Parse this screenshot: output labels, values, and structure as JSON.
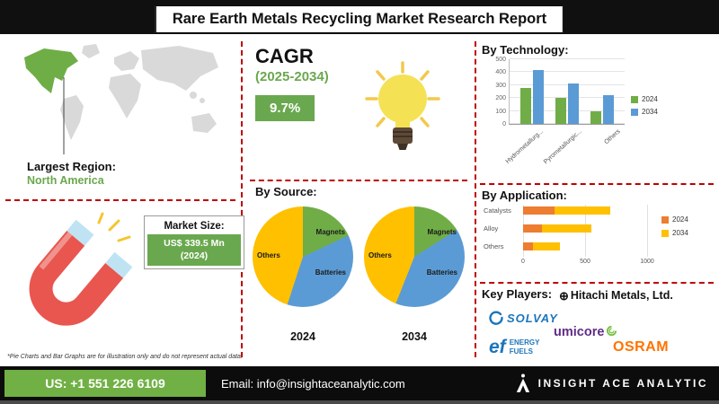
{
  "header": {
    "title": "Rare Earth Metals Recycling Market Research Report"
  },
  "region": {
    "label": "Largest Region:",
    "value": "North America"
  },
  "market_size": {
    "label": "Market Size:",
    "value": "US$ 339.5 Mn",
    "year": "(2024)"
  },
  "cagr": {
    "label": "CAGR",
    "period": "(2025-2034)",
    "value": "9.7%"
  },
  "key_players": {
    "label": "Key Players:",
    "hitachi": "Hitachi Metals, Ltd.",
    "solvay": "SOLVAY",
    "umicore": "umicore",
    "energy_fuels_mark": "ef",
    "energy_fuels_name1": "ENERGY",
    "energy_fuels_name2": "FUELS",
    "osram": "OSRAM"
  },
  "footnote": "*Pie Charts and Bar Graphs are for illustration only and do not represent actual data.",
  "footer": {
    "phone": "US: +1 551 226 6109",
    "email": "Email: info@insightaceanalytic.com",
    "brand": "INSIGHT ACE ANALYTIC"
  },
  "colors": {
    "accent_green": "#6aa84f",
    "dashed_red": "#c00000",
    "bar_green": "#70AD47",
    "bar_blue": "#5B9BD5",
    "orange": "#ED7D31",
    "yellow": "#FFC000"
  },
  "chart_data": [
    {
      "id": "by_technology",
      "type": "bar",
      "title": "By Technology:",
      "categories": [
        "Hydrometallurg...",
        "Pyrometallurgic...",
        "Others"
      ],
      "series": [
        {
          "name": "2024",
          "color": "#70AD47",
          "values": [
            280,
            200,
            100
          ]
        },
        {
          "name": "2034",
          "color": "#5B9BD5",
          "values": [
            420,
            310,
            220
          ]
        }
      ],
      "ylim": [
        0,
        500
      ],
      "yticks": [
        0,
        100,
        200,
        300,
        400,
        500
      ],
      "grid": true,
      "legend_position": "right"
    },
    {
      "id": "by_source_2024",
      "type": "pie",
      "title": "By Source:",
      "year": "2024",
      "labels": [
        "Magnets",
        "Batteries",
        "Others"
      ],
      "values": [
        18,
        37,
        45
      ],
      "colors": [
        "#70AD47",
        "#5B9BD5",
        "#FFC000"
      ]
    },
    {
      "id": "by_source_2034",
      "type": "pie",
      "title": "By Source:",
      "year": "2034",
      "labels": [
        "Magnets",
        "Batteries",
        "Others"
      ],
      "values": [
        16,
        40,
        44
      ],
      "colors": [
        "#70AD47",
        "#5B9BD5",
        "#FFC000"
      ]
    },
    {
      "id": "by_application",
      "type": "bar",
      "orientation": "horizontal",
      "stacked": true,
      "title": "By Application:",
      "categories": [
        "Catalysts",
        "Alloy",
        "Others"
      ],
      "series": [
        {
          "name": "2024",
          "color": "#ED7D31",
          "values": [
            250,
            150,
            80
          ]
        },
        {
          "name": "2034",
          "color": "#FFC000",
          "values": [
            450,
            400,
            220
          ]
        }
      ],
      "xlim": [
        0,
        1000
      ],
      "xticks": [
        0,
        500,
        1000
      ],
      "grid": true,
      "legend_position": "right"
    }
  ]
}
